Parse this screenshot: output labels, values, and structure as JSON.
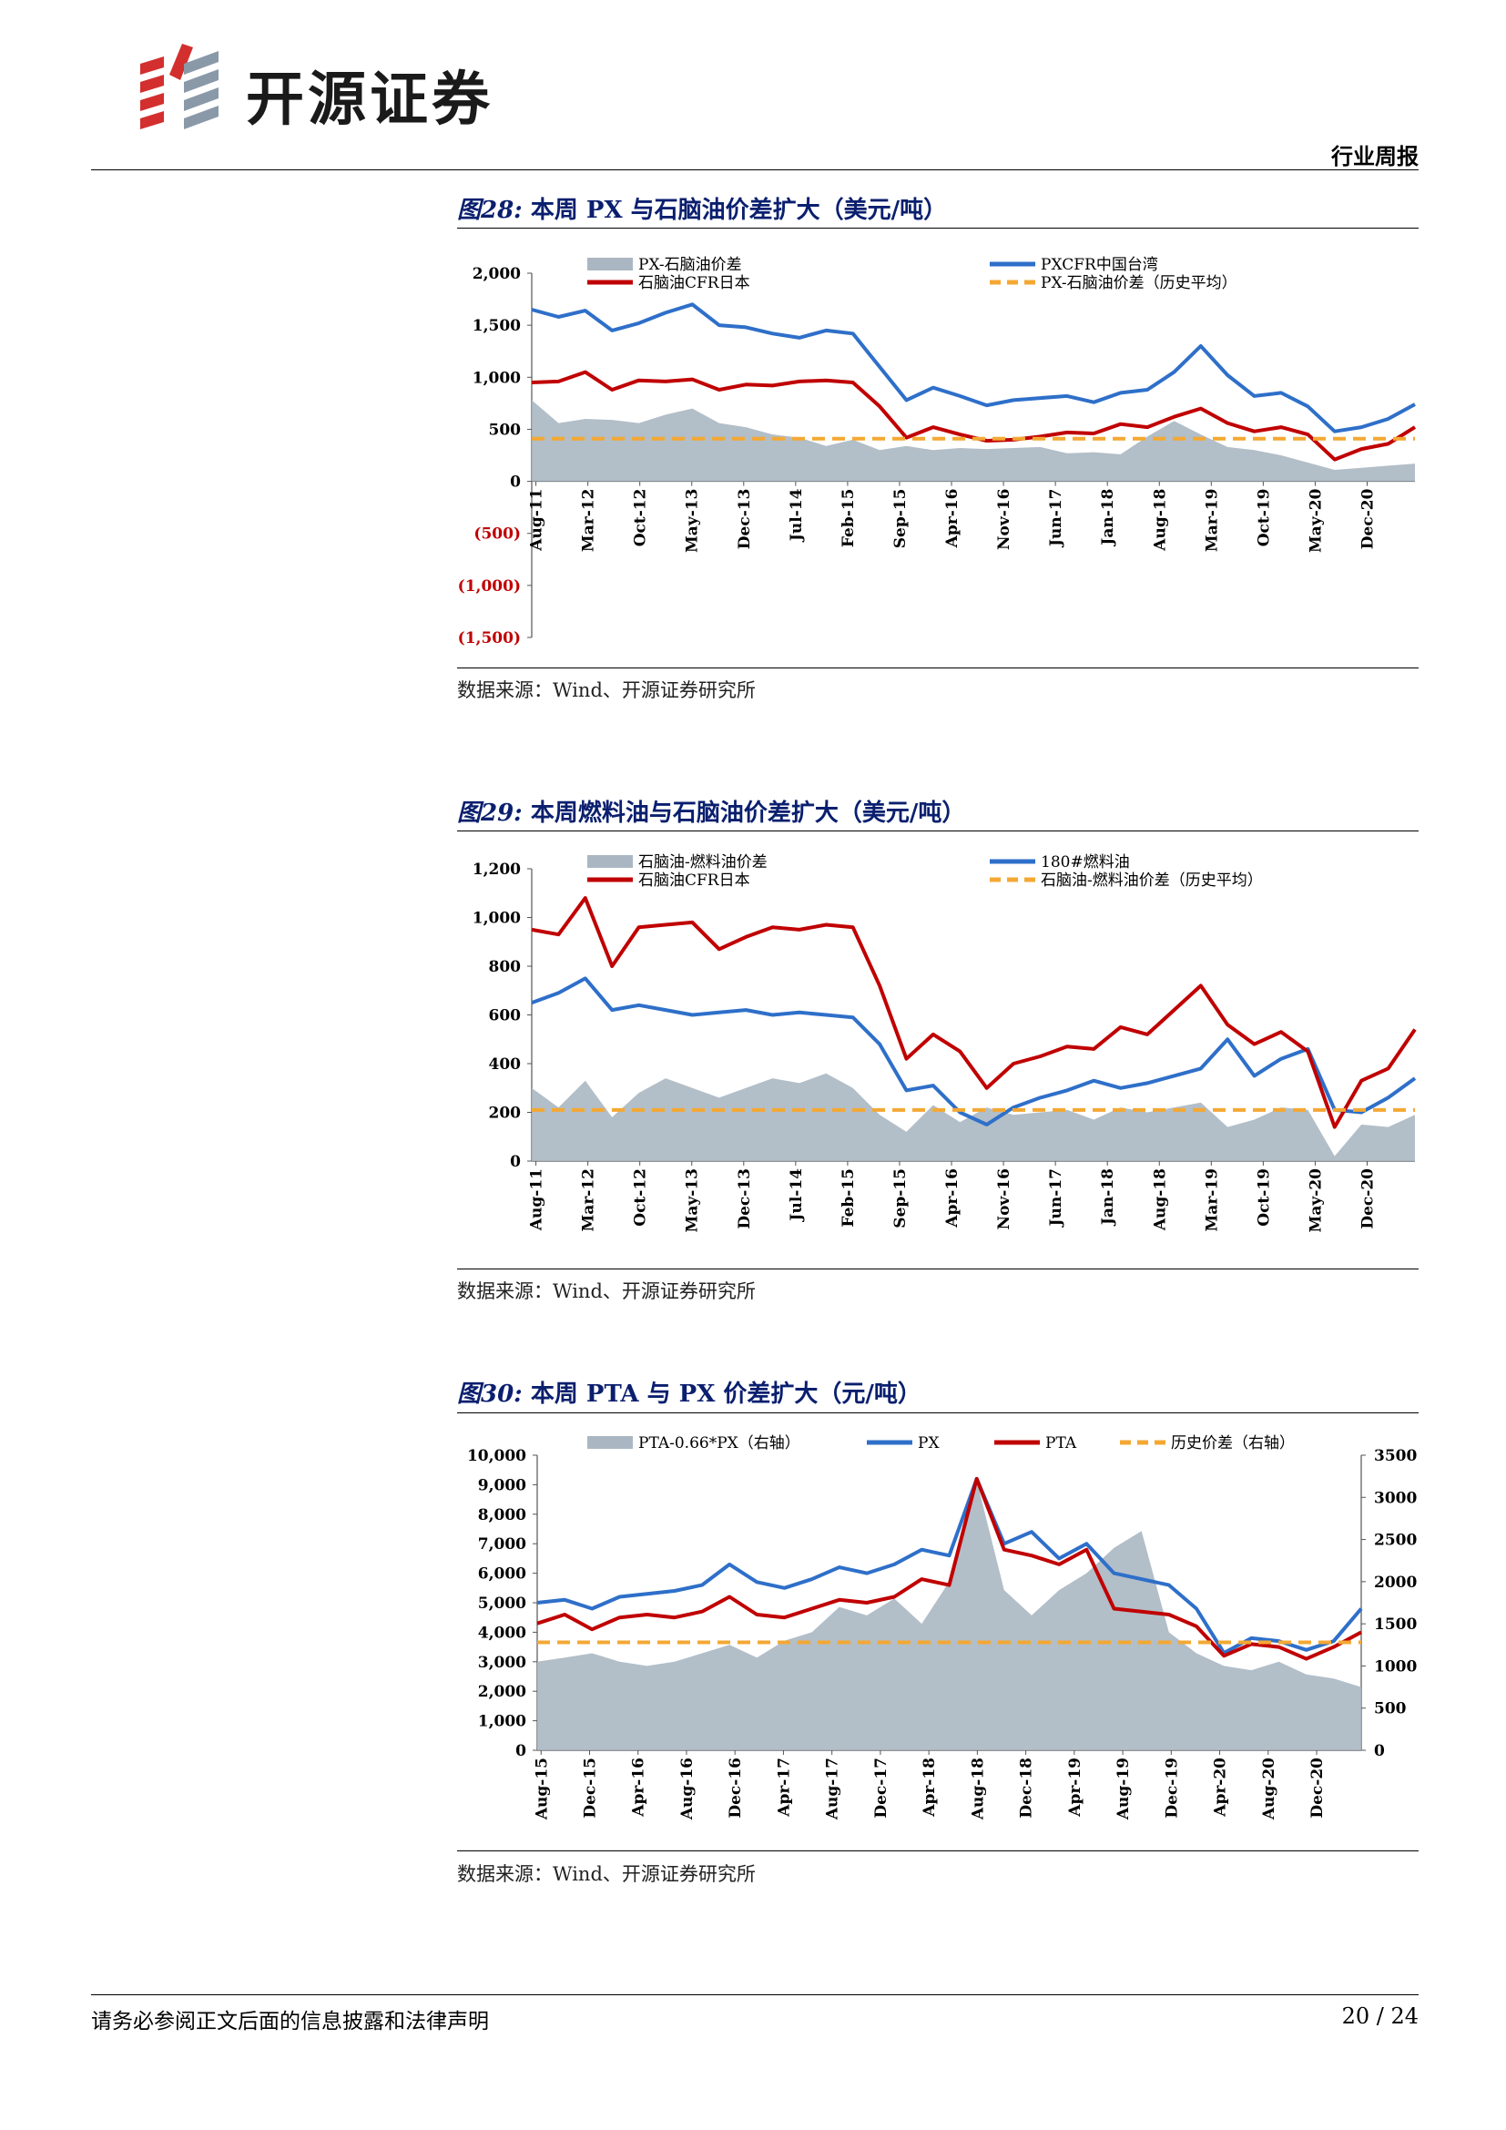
{
  "header": {
    "brand": "开源证券",
    "report_type": "行业周报"
  },
  "figures": [
    {
      "title_num": "图28:",
      "title": "本周 PX 与石脑油价差扩大（美元/吨）",
      "source": "数据来源：Wind、开源证券研究所"
    },
    {
      "title_num": "图29:",
      "title": "本周燃料油与石脑油价差扩大（美元/吨）",
      "source": "数据来源：Wind、开源证券研究所"
    },
    {
      "title_num": "图30:",
      "title": "本周 PTA 与 PX 价差扩大（元/吨）",
      "source": "数据来源：Wind、开源证券研究所"
    }
  ],
  "footer": {
    "disclaimer": "请务必参阅正文后面的信息披露和法律声明",
    "page": "20 / 24"
  },
  "colors": {
    "area": "#aab7c2",
    "blue": "#2e6fc9",
    "red": "#c00000",
    "avg": "#f4a833",
    "neg": "#c00000",
    "title": "#0a1f6e"
  },
  "chart_data": [
    {
      "type": "line",
      "title": "本周 PX 与石脑油价差扩大（美元/吨）",
      "ylim": [
        -1500,
        2000
      ],
      "yticks": [
        2000,
        1500,
        1000,
        500,
        0,
        -500,
        -1000,
        -1500
      ],
      "ytick_labels": [
        "2,000",
        "1,500",
        "1,000",
        "500",
        "0",
        "(500)",
        "(1,000)",
        "(1,500)"
      ],
      "xticks": [
        "Aug-11",
        "Mar-12",
        "Oct-12",
        "May-13",
        "Dec-13",
        "Jul-14",
        "Feb-15",
        "Sep-15",
        "Apr-16",
        "Nov-16",
        "Jun-17",
        "Jan-18",
        "Aug-18",
        "Mar-19",
        "Oct-19",
        "May-20",
        "Dec-20"
      ],
      "legend": [
        "PX-石脑油价差",
        "PXCFR中国台湾",
        "石脑油CFR日本",
        "PX-石脑油价差（历史平均）"
      ],
      "series": [
        {
          "name": "PX-石脑油价差",
          "kind": "area",
          "values": [
            780,
            560,
            600,
            590,
            560,
            640,
            700,
            560,
            520,
            450,
            420,
            340,
            400,
            300,
            340,
            300,
            320,
            310,
            320,
            330,
            270,
            280,
            260,
            430,
            580,
            450,
            330,
            300,
            250,
            180,
            110,
            130,
            150,
            170
          ]
        },
        {
          "name": "PXCFR中国台湾",
          "kind": "line",
          "values": [
            1650,
            1580,
            1640,
            1450,
            1520,
            1620,
            1700,
            1500,
            1480,
            1420,
            1380,
            1450,
            1420,
            1100,
            780,
            900,
            820,
            730,
            780,
            800,
            820,
            760,
            850,
            880,
            1050,
            1300,
            1020,
            820,
            850,
            720,
            480,
            520,
            600,
            740
          ]
        },
        {
          "name": "石脑油CFR日本",
          "kind": "line",
          "values": [
            950,
            960,
            1050,
            880,
            970,
            960,
            980,
            880,
            930,
            920,
            960,
            970,
            950,
            720,
            420,
            520,
            450,
            390,
            400,
            430,
            470,
            460,
            550,
            520,
            620,
            700,
            560,
            480,
            520,
            450,
            210,
            310,
            360,
            520
          ]
        },
        {
          "name": "PX-石脑油价差（历史平均）",
          "kind": "avg",
          "values": [
            410
          ]
        }
      ]
    },
    {
      "type": "line",
      "title": "本周燃料油与石脑油价差扩大（美元/吨）",
      "ylim": [
        0,
        1200
      ],
      "yticks": [
        1200,
        1000,
        800,
        600,
        400,
        200,
        0
      ],
      "ytick_labels": [
        "1,200",
        "1,000",
        "800",
        "600",
        "400",
        "200",
        "0"
      ],
      "xticks": [
        "Aug-11",
        "Mar-12",
        "Oct-12",
        "May-13",
        "Dec-13",
        "Jul-14",
        "Feb-15",
        "Sep-15",
        "Apr-16",
        "Nov-16",
        "Jun-17",
        "Jan-18",
        "Aug-18",
        "Mar-19",
        "Oct-19",
        "May-20",
        "Dec-20"
      ],
      "legend": [
        "石脑油-燃料油价差",
        "180#燃料油",
        "石脑油CFR日本",
        "石脑油-燃料油价差（历史平均）"
      ],
      "series": [
        {
          "name": "石脑油-燃料油价差",
          "kind": "area",
          "values": [
            300,
            220,
            330,
            180,
            280,
            340,
            300,
            260,
            300,
            340,
            320,
            360,
            300,
            190,
            120,
            230,
            160,
            220,
            190,
            200,
            210,
            170,
            220,
            200,
            220,
            240,
            140,
            170,
            220,
            210,
            20,
            150,
            140,
            190
          ]
        },
        {
          "name": "180#燃料油",
          "kind": "line",
          "values": [
            650,
            690,
            750,
            620,
            640,
            620,
            600,
            610,
            620,
            600,
            610,
            600,
            590,
            480,
            290,
            310,
            200,
            150,
            220,
            260,
            290,
            330,
            300,
            320,
            350,
            380,
            500,
            350,
            420,
            460,
            210,
            200,
            260,
            340
          ]
        },
        {
          "name": "石脑油CFR日本",
          "kind": "line",
          "values": [
            950,
            930,
            1080,
            800,
            960,
            970,
            980,
            870,
            920,
            960,
            950,
            970,
            960,
            720,
            420,
            520,
            450,
            300,
            400,
            430,
            470,
            460,
            550,
            520,
            620,
            720,
            560,
            480,
            530,
            450,
            140,
            330,
            380,
            540
          ]
        },
        {
          "name": "石脑油-燃料油价差（历史平均）",
          "kind": "avg",
          "values": [
            210
          ]
        }
      ]
    },
    {
      "type": "line",
      "title": "本周 PTA 与 PX 价差扩大（元/吨）",
      "ylim": [
        0,
        10000
      ],
      "y2lim": [
        0,
        3500
      ],
      "yticks": [
        10000,
        9000,
        8000,
        7000,
        6000,
        5000,
        4000,
        3000,
        2000,
        1000,
        0
      ],
      "ytick_labels": [
        "10,000",
        "9,000",
        "8,000",
        "7,000",
        "6,000",
        "5,000",
        "4,000",
        "3,000",
        "2,000",
        "1,000",
        "0"
      ],
      "y2ticks": [
        3500,
        3000,
        2500,
        2000,
        1500,
        1000,
        500,
        0
      ],
      "y2tick_labels": [
        "3500",
        "3000",
        "2500",
        "2000",
        "1500",
        "1000",
        "500",
        "0"
      ],
      "xticks": [
        "Aug-15",
        "Dec-15",
        "Apr-16",
        "Aug-16",
        "Dec-16",
        "Apr-17",
        "Aug-17",
        "Dec-17",
        "Apr-18",
        "Aug-18",
        "Dec-18",
        "Apr-19",
        "Aug-19",
        "Dec-19",
        "Apr-20",
        "Aug-20",
        "Dec-20"
      ],
      "legend": [
        "PTA-0.66*PX（右轴）",
        "PX",
        "PTA",
        "历史价差（右轴）"
      ],
      "series": [
        {
          "name": "PTA-0.66*PX（右轴）",
          "kind": "area",
          "axis": "right",
          "values": [
            1050,
            1100,
            1150,
            1050,
            1000,
            1050,
            1150,
            1250,
            1100,
            1300,
            1400,
            1700,
            1600,
            1800,
            1500,
            2000,
            3200,
            1900,
            1600,
            1900,
            2100,
            2400,
            2600,
            1400,
            1150,
            1000,
            950,
            1050,
            900,
            850,
            750
          ]
        },
        {
          "name": "PX",
          "kind": "line",
          "axis": "left",
          "values": [
            5000,
            5100,
            4800,
            5200,
            5300,
            5400,
            5600,
            6300,
            5700,
            5500,
            5800,
            6200,
            6000,
            6300,
            6800,
            6600,
            9200,
            7000,
            7400,
            6500,
            7000,
            6000,
            5800,
            5600,
            4800,
            3300,
            3800,
            3700,
            3400,
            3700,
            4800
          ]
        },
        {
          "name": "PTA",
          "kind": "line",
          "axis": "left",
          "values": [
            4300,
            4600,
            4100,
            4500,
            4600,
            4500,
            4700,
            5200,
            4600,
            4500,
            4800,
            5100,
            5000,
            5200,
            5800,
            5600,
            9200,
            6800,
            6600,
            6300,
            6800,
            4800,
            4700,
            4600,
            4200,
            3200,
            3600,
            3500,
            3100,
            3500,
            4000
          ]
        },
        {
          "name": "历史价差（右轴）",
          "kind": "avg",
          "axis": "right",
          "values": [
            1280
          ]
        }
      ]
    }
  ]
}
